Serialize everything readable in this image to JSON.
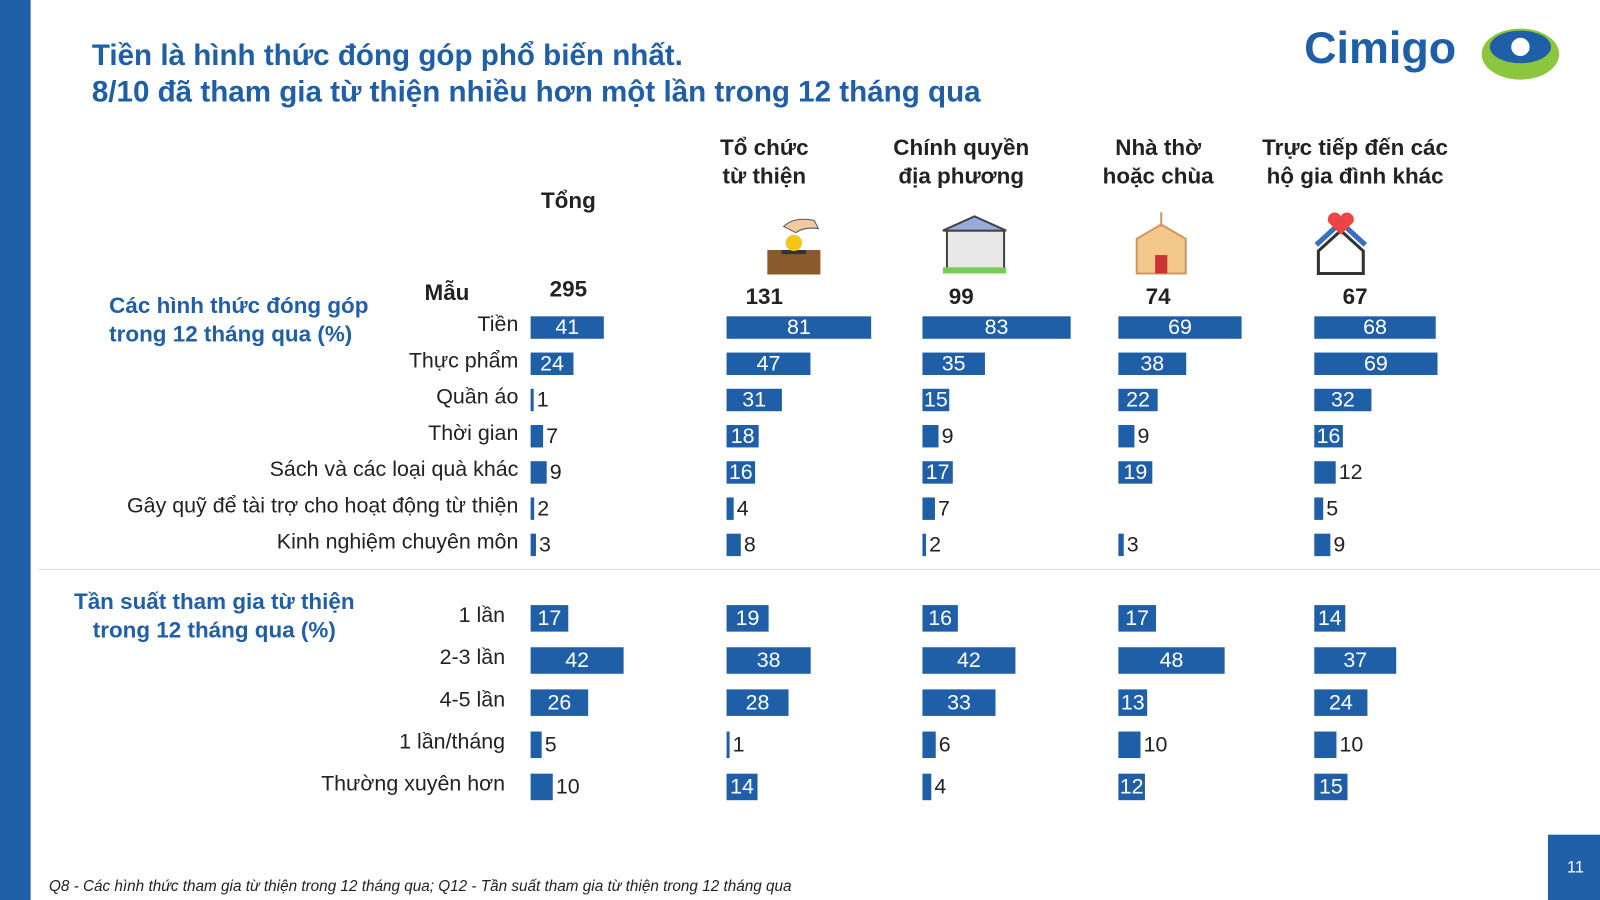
{
  "header": {
    "title_lines": [
      "Tiền là hình thức đóng góp phổ biến nhất.",
      "8/10 đã tham gia từ thiện nhiều hơn một lần trong 12 tháng qua"
    ],
    "logo": "Cimigo"
  },
  "sample_label": "Mẫu",
  "columns": [
    {
      "label_lines": [
        "Tổng"
      ],
      "sample": 295
    },
    {
      "label_lines": [
        "Tổ chức",
        "từ thiện"
      ],
      "sample": 131
    },
    {
      "label_lines": [
        "Chính quyền",
        "địa phương"
      ],
      "sample": 99
    },
    {
      "label_lines": [
        "Nhà thờ",
        "hoặc chùa"
      ],
      "sample": 74
    },
    {
      "label_lines": [
        "Trực tiếp đến các",
        "hộ gia đình khác"
      ],
      "sample": 67
    }
  ],
  "sections": [
    {
      "title_lines": [
        "Các hình thức đóng góp",
        "trong 12 tháng qua (%)"
      ],
      "rows": [
        {
          "label": "Tiền",
          "values": [
            41,
            81,
            83,
            69,
            68
          ]
        },
        {
          "label": "Thực phẩm",
          "values": [
            24,
            47,
            35,
            38,
            69
          ]
        },
        {
          "label": "Quần áo",
          "values": [
            1,
            31,
            15,
            22,
            32
          ]
        },
        {
          "label": "Thời gian",
          "values": [
            7,
            18,
            9,
            9,
            16
          ]
        },
        {
          "label": "Sách và các loại quà khác",
          "values": [
            9,
            16,
            17,
            19,
            12
          ]
        },
        {
          "label": "Gây quỹ để tài trợ cho hoạt động từ thiện",
          "values": [
            2,
            4,
            7,
            null,
            5
          ]
        },
        {
          "label": "Kinh nghiệm chuyên môn",
          "values": [
            3,
            8,
            2,
            3,
            9
          ]
        }
      ]
    },
    {
      "title_lines": [
        "Tần suất tham gia từ thiện",
        "trong 12 tháng qua (%)"
      ],
      "rows": [
        {
          "label": "1 lần",
          "values": [
            17,
            19,
            16,
            17,
            14
          ]
        },
        {
          "label": "2-3 lần",
          "values": [
            42,
            38,
            42,
            48,
            37
          ]
        },
        {
          "label": "4-5 lần",
          "values": [
            26,
            28,
            33,
            13,
            24
          ]
        },
        {
          "label": "1 lần/tháng",
          "values": [
            5,
            1,
            6,
            10,
            10
          ]
        },
        {
          "label": "Thường xuyên hơn",
          "values": [
            10,
            14,
            4,
            12,
            15
          ]
        }
      ]
    }
  ],
  "footnote": "Q8 - Các hình thức tham gia từ thiện trong 12 tháng qua; Q12 - Tần suất  tham gia từ thiện trong 12 tháng qua",
  "page_number": 11
}
